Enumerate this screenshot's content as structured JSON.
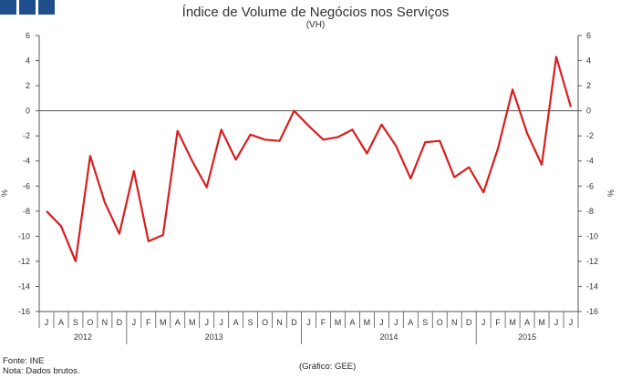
{
  "header": {
    "brand_color": "#1f4e8c"
  },
  "chart_data": {
    "type": "line",
    "title": "Índice de Volume de Negócios nos Serviços",
    "subtitle": "(VH)",
    "ylabel_left": "%",
    "ylabel_right": "%",
    "ylim": [
      -16,
      6
    ],
    "yticks": [
      6,
      4,
      2,
      0,
      -2,
      -4,
      -6,
      -8,
      -10,
      -12,
      -14,
      -16
    ],
    "grid": false,
    "line_color": "#d81e1e",
    "months": [
      "J",
      "A",
      "S",
      "O",
      "N",
      "D",
      "J",
      "F",
      "M",
      "A",
      "M",
      "J",
      "J",
      "A",
      "S",
      "O",
      "N",
      "D",
      "J",
      "F",
      "M",
      "A",
      "M",
      "J",
      "J",
      "A",
      "S",
      "O",
      "N",
      "D",
      "J",
      "F",
      "M",
      "A",
      "M",
      "J",
      "J"
    ],
    "years": [
      {
        "label": "2012",
        "start": 0,
        "end": 5
      },
      {
        "label": "2013",
        "start": 6,
        "end": 17
      },
      {
        "label": "2014",
        "start": 18,
        "end": 29
      },
      {
        "label": "2015",
        "start": 30,
        "end": 36
      }
    ],
    "series": [
      {
        "name": "VH",
        "values": [
          -8.0,
          -9.2,
          -12.0,
          -3.6,
          -7.3,
          -9.8,
          -4.8,
          -10.4,
          -9.9,
          -1.6,
          -4.0,
          -6.1,
          -1.5,
          -3.9,
          -1.9,
          -2.3,
          -2.4,
          0.0,
          -1.2,
          -2.3,
          -2.1,
          -1.5,
          -3.4,
          -1.1,
          -2.8,
          -5.4,
          -2.5,
          -2.4,
          -5.3,
          -4.5,
          -6.5,
          -3.0,
          1.7,
          -1.8,
          -4.3,
          4.3,
          0.3
        ]
      }
    ]
  },
  "footer": {
    "source": "Fonte: INE",
    "note": "Nota: Dados brutos.",
    "credit": "(Gráfico: GEE)"
  }
}
